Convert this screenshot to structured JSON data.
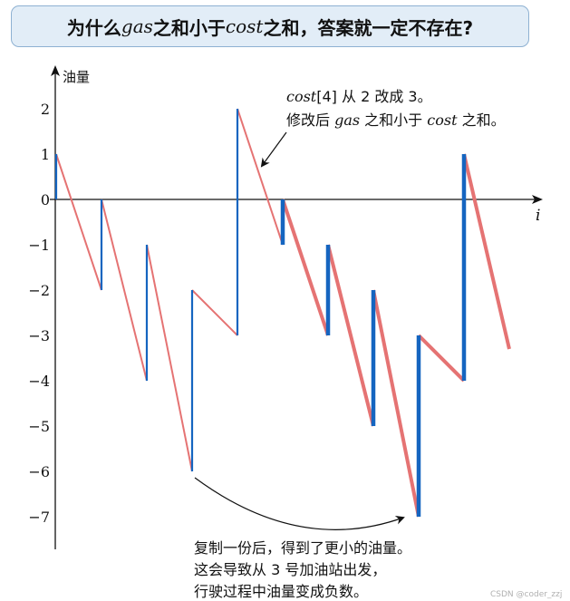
{
  "title": {
    "prefix": "为什么 ",
    "gas": "gas",
    "mid": " 之和小于 ",
    "cost": "cost",
    "suffix": " 之和，答案就一定不存在?"
  },
  "annotations": {
    "top_line1_math1": "cost",
    "top_line1_math2": "[4]",
    "top_line1_text": " 从 2 改成 3。",
    "top_line2_a": "修改后 ",
    "top_line2_gas": "gas",
    "top_line2_b": " 之和小于 ",
    "top_line2_cost": "cost",
    "top_line2_c": " 之和。",
    "bottom_line1": "复制一份后，得到了更小的油量。",
    "bottom_line2": "这会导致从 3 号加油站出发，",
    "bottom_line3": "行驶过程中油量变成负数。"
  },
  "watermark": "CSDN @coder_zzj",
  "colors": {
    "jump": "#1565c0",
    "drive": "#e57373",
    "title_bg": "#e2edf7",
    "title_border": "#8eb1d2"
  },
  "chart_data": {
    "type": "line",
    "ylabel": "油量",
    "xlabel": "i",
    "yticks": [
      2,
      1,
      0,
      -1,
      -2,
      -3,
      -4,
      -5,
      -6,
      -7
    ],
    "ytick_labels": [
      "2",
      "1",
      "0",
      "−1",
      "−2",
      "−3",
      "−4",
      "−5",
      "−6",
      "−7"
    ],
    "x_range": [
      0,
      10.7
    ],
    "y_range": [
      -7.8,
      2.8
    ],
    "original": {
      "jumps": [
        [
          0,
          0,
          1
        ],
        [
          1,
          -2,
          0
        ],
        [
          2,
          -4,
          -1
        ],
        [
          3,
          -6,
          -2
        ],
        [
          4,
          -3,
          2
        ]
      ],
      "drives": [
        [
          0,
          1,
          1,
          -2
        ],
        [
          1,
          0,
          2,
          -4
        ],
        [
          2,
          -1,
          3,
          -6
        ],
        [
          3,
          -2,
          4,
          -3
        ],
        [
          4,
          2,
          5,
          -1
        ]
      ]
    },
    "copy": {
      "jumps": [
        [
          5,
          -1,
          0
        ],
        [
          6,
          -3,
          -1
        ],
        [
          7,
          -5,
          -2
        ],
        [
          8,
          -7,
          -3
        ],
        [
          9,
          -4,
          1
        ]
      ],
      "drives": [
        [
          5,
          0,
          6,
          -3
        ],
        [
          6,
          -1,
          7,
          -5
        ],
        [
          7,
          -2,
          8,
          -7
        ],
        [
          8,
          -3,
          9,
          -4
        ],
        [
          9,
          1,
          10,
          -3.3
        ]
      ]
    }
  }
}
